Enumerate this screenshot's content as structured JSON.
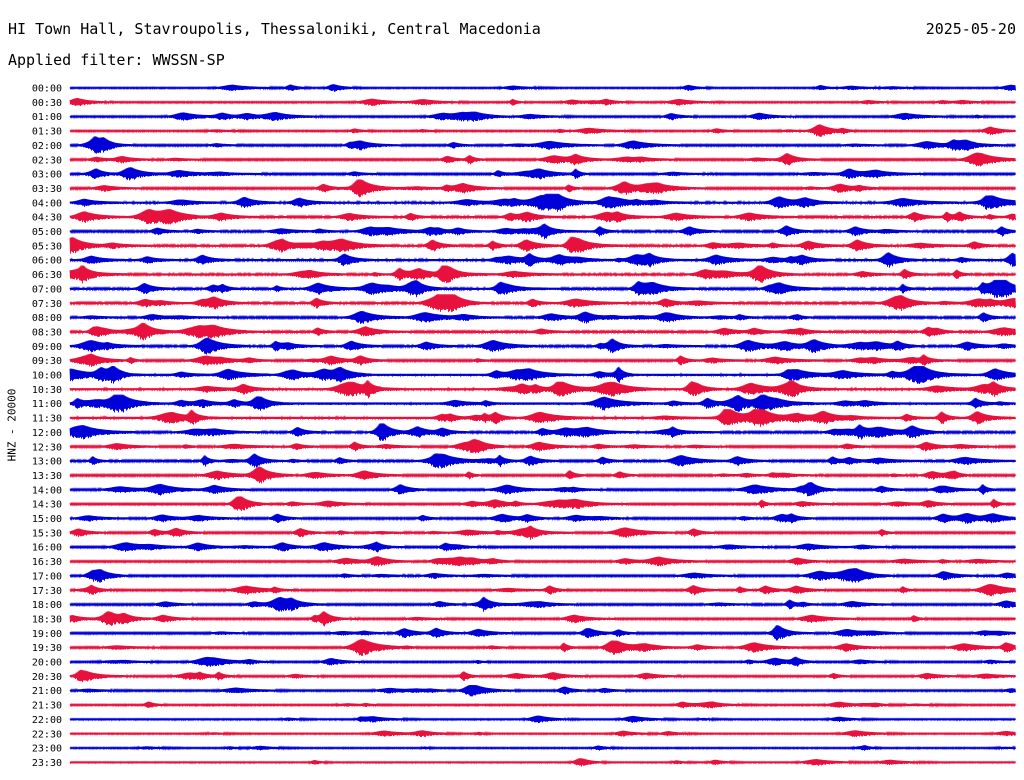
{
  "header": {
    "title": "HI Town Hall, Stavroupolis, Thessaloniki, Central Macedonia",
    "date": "2025-05-20",
    "filter": "Applied filter: WWSSN-SP"
  },
  "chart_data": {
    "type": "line",
    "title": "HI Town Hall, Stavroupolis, Thessaloniki, Central Macedonia",
    "subtitle": "Applied filter: WWSSN-SP",
    "ylabel": "HNZ - 20000",
    "xlabel": "",
    "grid": false,
    "colors": [
      "#0000d8",
      "#e8103c"
    ],
    "row_labels": [
      "00:00",
      "00:30",
      "01:00",
      "01:30",
      "02:00",
      "02:30",
      "03:00",
      "03:30",
      "04:00",
      "04:30",
      "05:00",
      "05:30",
      "06:00",
      "06:30",
      "07:00",
      "07:30",
      "08:00",
      "08:30",
      "09:00",
      "09:30",
      "10:00",
      "10:30",
      "11:00",
      "11:30",
      "12:00",
      "12:30",
      "13:00",
      "13:30",
      "14:00",
      "14:30",
      "15:00",
      "15:30",
      "16:00",
      "16:30",
      "17:00",
      "17:30",
      "18:00",
      "18:30",
      "19:00",
      "19:30",
      "20:00",
      "20:30",
      "21:00",
      "21:30",
      "22:00",
      "22:30",
      "23:00",
      "23:30"
    ],
    "row_activity": [
      0.25,
      0.35,
      0.4,
      0.35,
      0.5,
      0.5,
      0.55,
      0.55,
      0.75,
      0.65,
      0.7,
      0.7,
      0.75,
      0.75,
      0.7,
      0.65,
      0.65,
      0.65,
      0.7,
      0.6,
      0.85,
      0.8,
      0.9,
      0.8,
      0.7,
      0.55,
      0.65,
      0.6,
      0.55,
      0.5,
      0.5,
      0.5,
      0.45,
      0.45,
      0.45,
      0.45,
      0.5,
      0.45,
      0.5,
      0.5,
      0.4,
      0.45,
      0.35,
      0.3,
      0.2,
      0.2,
      0.2,
      0.15
    ]
  }
}
